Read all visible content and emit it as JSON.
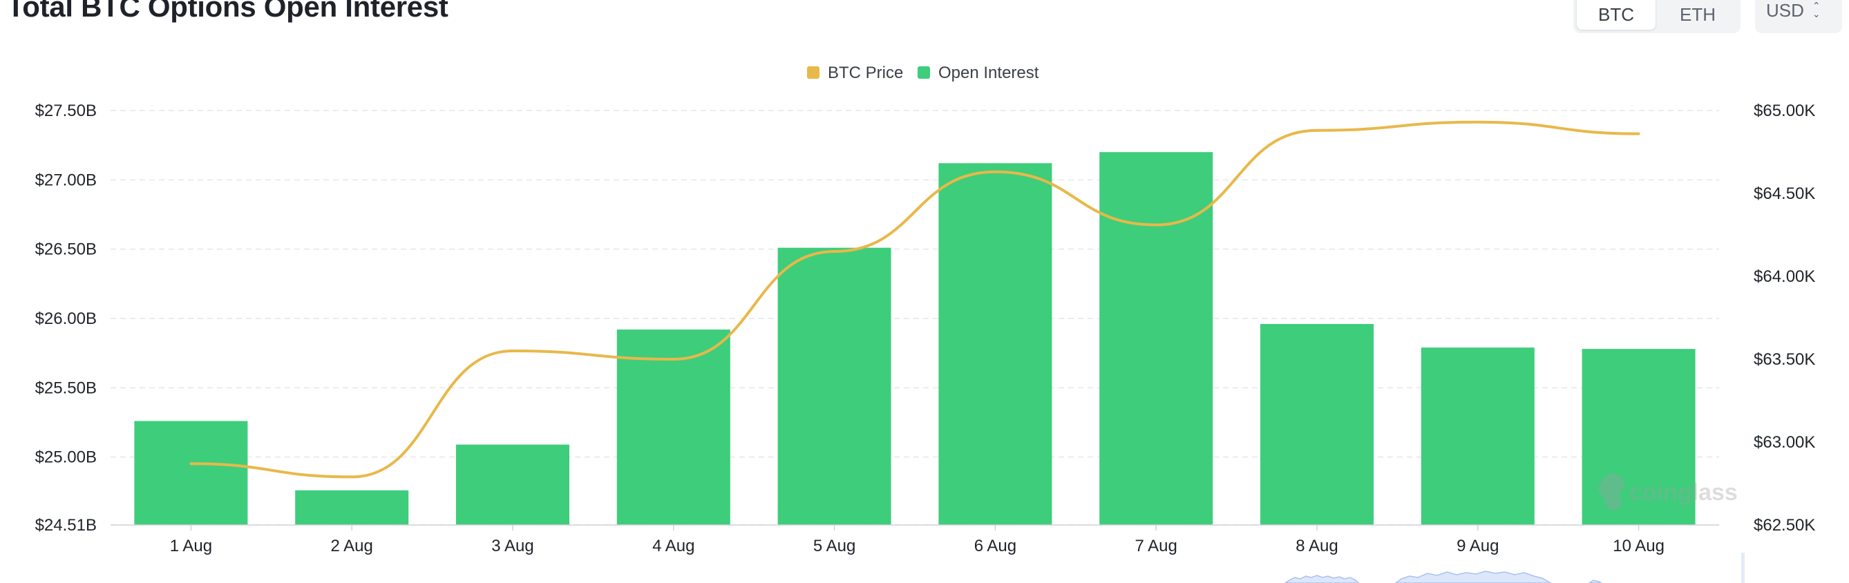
{
  "header": {
    "title": "Total BTC Options Open Interest",
    "coin_tabs": [
      {
        "label": "BTC",
        "active": true
      },
      {
        "label": "ETH",
        "active": false
      }
    ],
    "currency": {
      "selected": "USD"
    }
  },
  "watermark": "coinglass",
  "colors": {
    "price_line": "#E8B84A",
    "bars": "#3ECD7B",
    "grid": "#E6E6E6",
    "text": "#1F2329"
  },
  "chart_data": {
    "type": "bar",
    "categories": [
      "1 Aug",
      "2 Aug",
      "3 Aug",
      "4 Aug",
      "5 Aug",
      "6 Aug",
      "7 Aug",
      "8 Aug",
      "9 Aug",
      "10 Aug"
    ],
    "legend": {
      "position": "top-center",
      "items": [
        "BTC Price",
        "Open Interest"
      ]
    },
    "grid": true,
    "series": [
      {
        "name": "Open Interest",
        "type": "bar",
        "axis": "left",
        "values": [
          25.26,
          24.76,
          25.09,
          25.92,
          26.51,
          27.12,
          27.2,
          25.96,
          25.79,
          25.78
        ]
      },
      {
        "name": "BTC Price",
        "type": "line",
        "axis": "right",
        "values": [
          62870,
          62790,
          63550,
          63500,
          64150,
          64630,
          64310,
          64880,
          64930,
          64860
        ]
      }
    ],
    "y_left": {
      "ticks": [
        24.51,
        25.0,
        25.5,
        26.0,
        26.5,
        27.0,
        27.5
      ],
      "tick_labels": [
        "$24.51B",
        "$25.00B",
        "$25.50B",
        "$26.00B",
        "$26.50B",
        "$27.00B",
        "$27.50B"
      ],
      "ylim": [
        24.51,
        27.5
      ]
    },
    "y_right": {
      "ticks": [
        62500,
        63000,
        63500,
        64000,
        64500,
        65000
      ],
      "tick_labels": [
        "$62.50K",
        "$63.00K",
        "$63.50K",
        "$64.00K",
        "$64.50K",
        "$65.00K"
      ],
      "ylim": [
        62500,
        65000
      ]
    }
  }
}
